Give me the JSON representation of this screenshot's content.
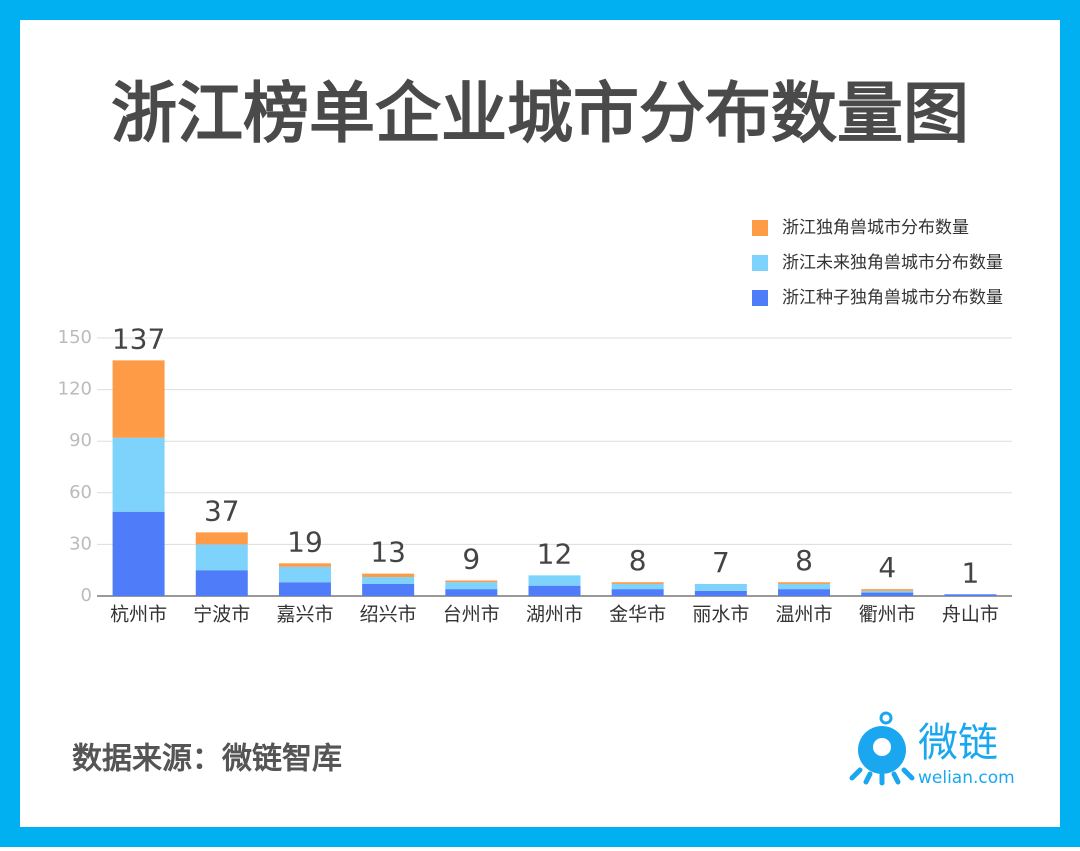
{
  "chart_data": {
    "type": "stacked_bar",
    "title": "浙江榜单企业城市分布数量图",
    "categories": [
      "杭州市",
      "宁波市",
      "嘉兴市",
      "绍兴市",
      "台州市",
      "湖州市",
      "金华市",
      "丽水市",
      "温州市",
      "衢州市",
      "舟山市"
    ],
    "series": [
      {
        "name": "浙江种子独角兽城市分布数量",
        "color": "#4f7dfa",
        "values": [
          49,
          15,
          8,
          7,
          4,
          6,
          4,
          3,
          4,
          2,
          1
        ]
      },
      {
        "name": "浙江未来独角兽城市分布数量",
        "color": "#7dd3fc",
        "values": [
          43,
          15,
          9,
          4,
          4,
          6,
          3,
          4,
          3,
          1,
          0
        ]
      },
      {
        "name": "浙江独角兽城市分布数量",
        "color": "#fd9b47",
        "values": [
          45,
          7,
          2,
          2,
          1,
          0,
          1,
          0,
          1,
          1,
          0
        ]
      }
    ],
    "totals": [
      137,
      37,
      19,
      13,
      9,
      12,
      8,
      7,
      8,
      4,
      1
    ],
    "ylim": [
      0,
      150
    ],
    "yticks": [
      0,
      30,
      60,
      90,
      120,
      150
    ],
    "grid": true,
    "legend": "top-right",
    "source": "数据来源：微链智库",
    "logo": {
      "name": "微链",
      "url": "welian.com"
    }
  }
}
